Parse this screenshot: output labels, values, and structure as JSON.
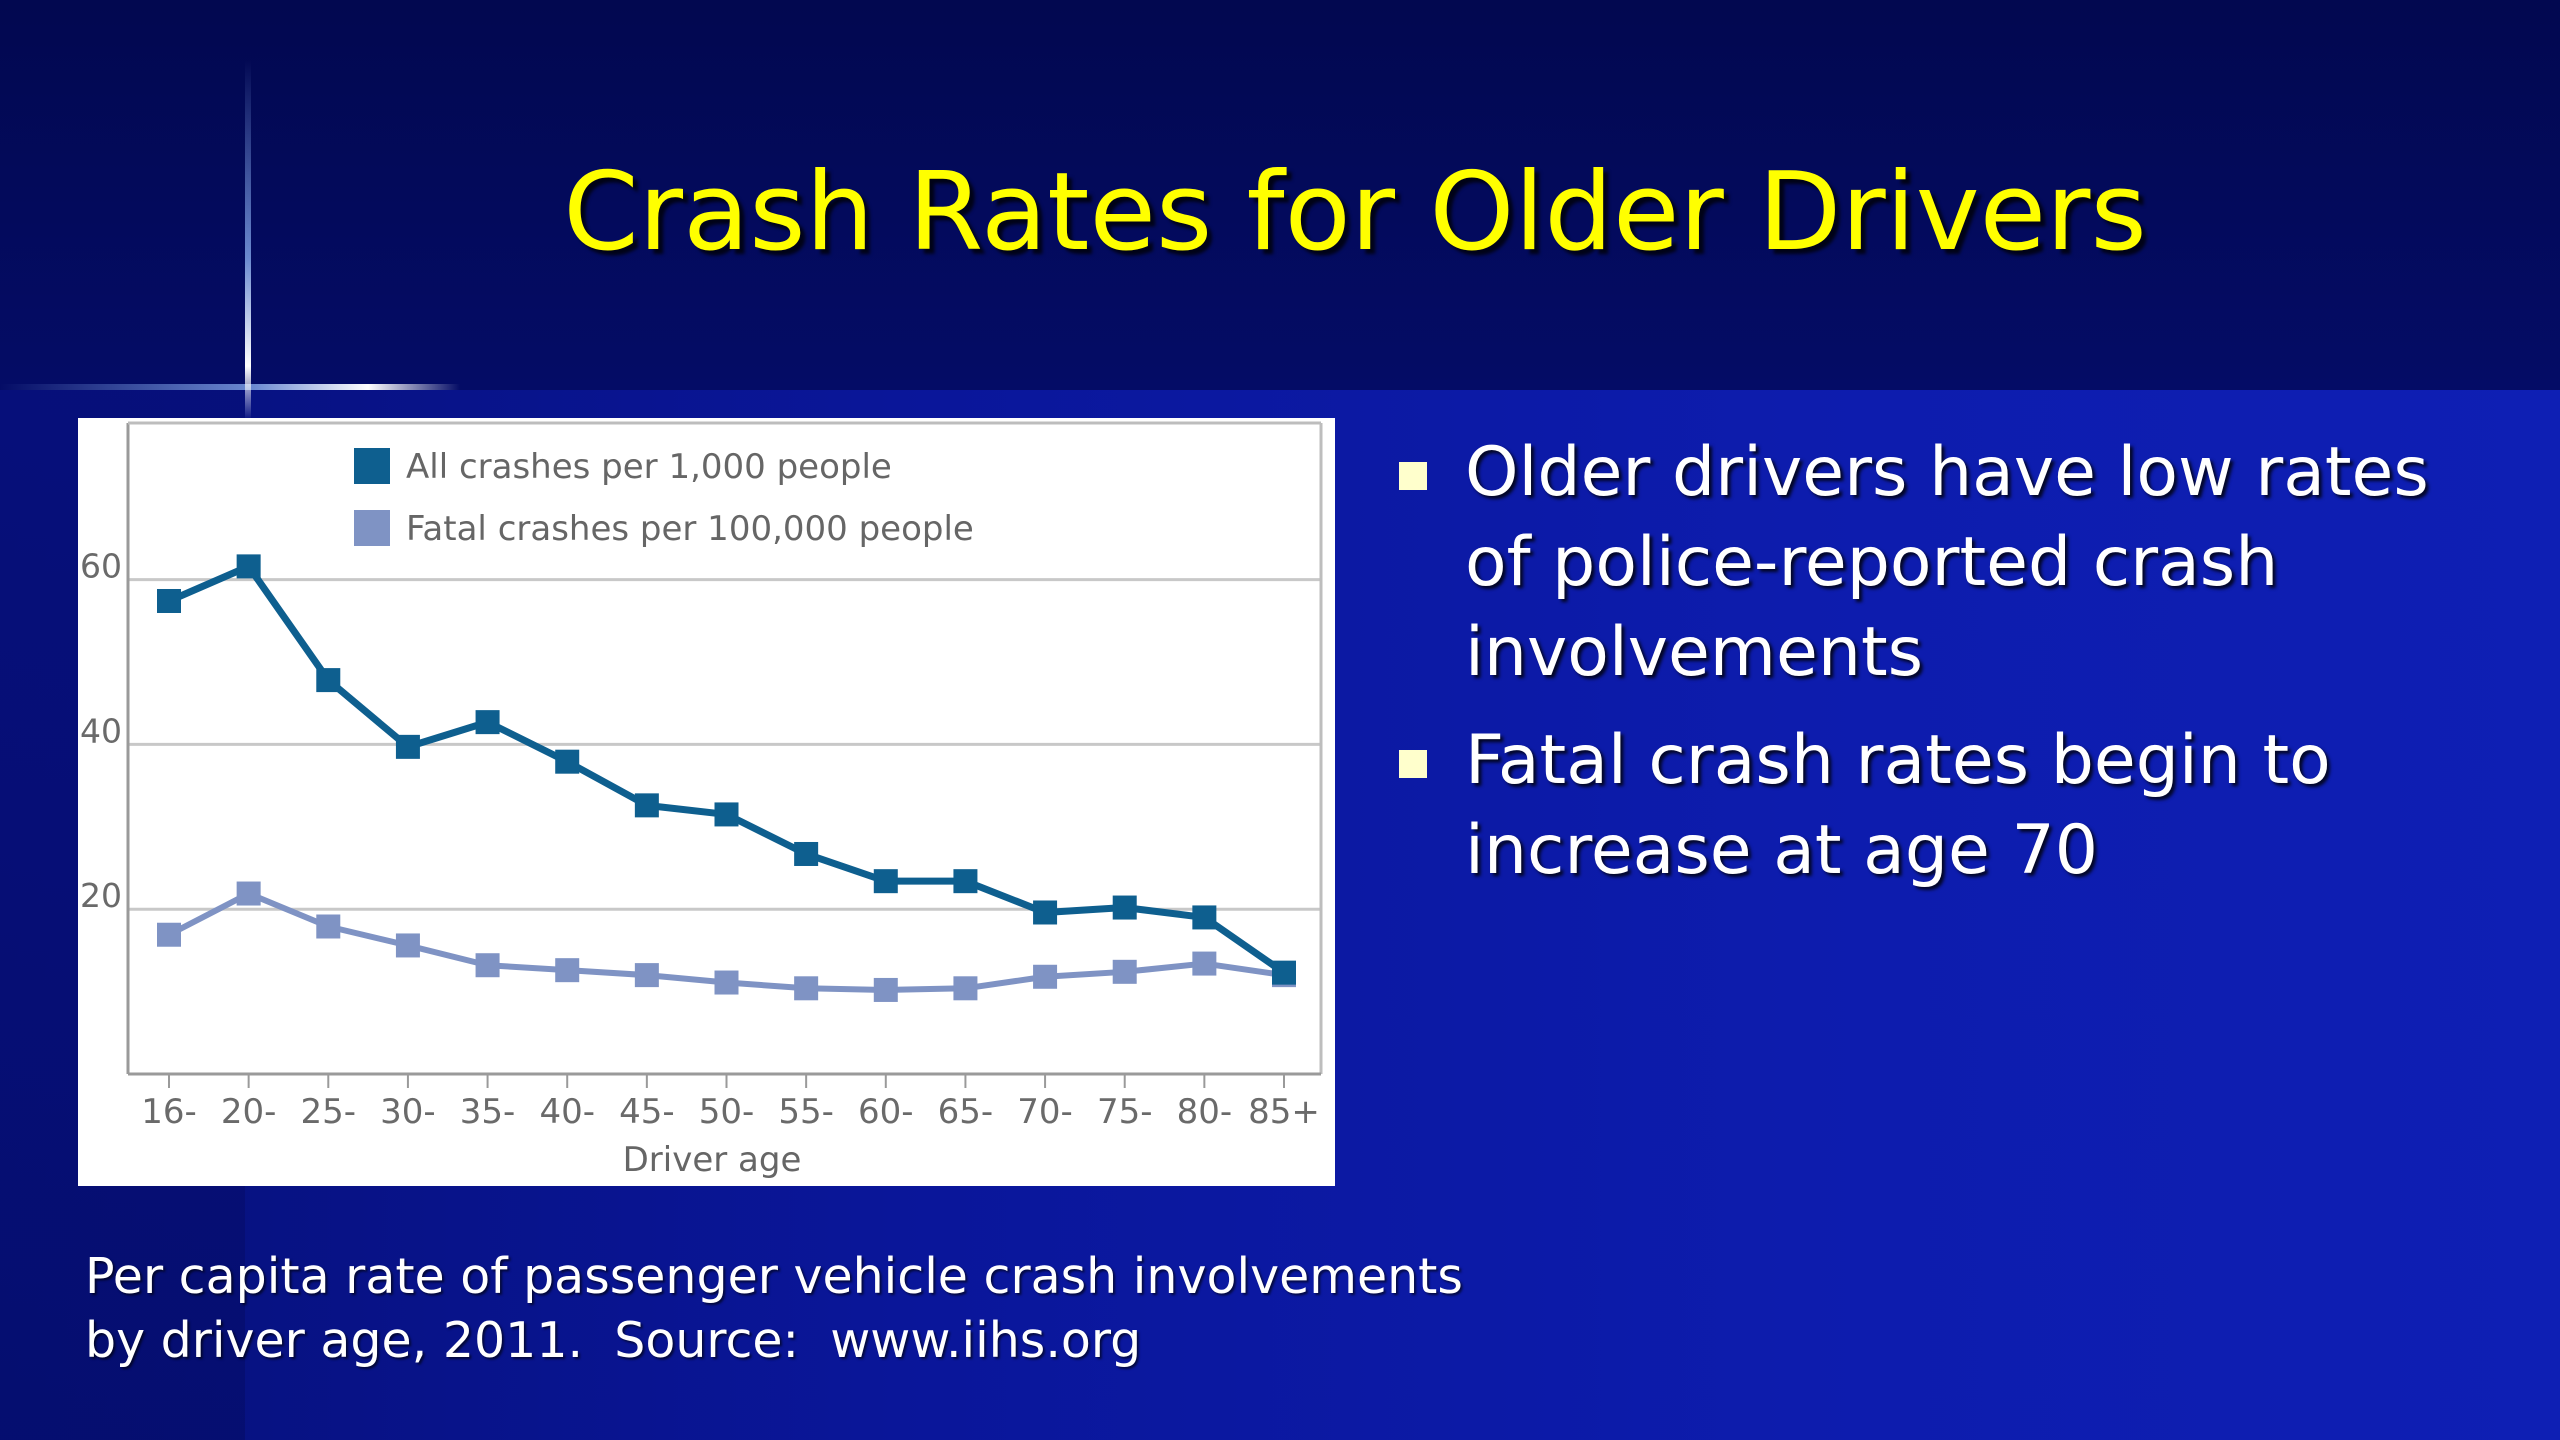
{
  "slide": {
    "title": "Crash Rates for Older Drivers",
    "bullets": [
      "Older drivers have low rates of police-reported crash involvements",
      "Fatal crash rates begin to increase at age 70"
    ],
    "caption_lines": [
      "Per capita rate of passenger vehicle crash involvements",
      "by driver age, 2011.  Source:  www.iihs.org"
    ]
  },
  "chart_data": {
    "type": "line",
    "categories": [
      "16-",
      "20-",
      "25-",
      "30-",
      "35-",
      "40-",
      "45-",
      "50-",
      "55-",
      "60-",
      "65-",
      "70-",
      "75-",
      "80-",
      "85+"
    ],
    "series": [
      {
        "name": "All crashes per 1,000 people",
        "color": "#0e5f8f",
        "values": [
          57.4,
          61.6,
          47.8,
          39.7,
          42.7,
          37.9,
          32.6,
          31.5,
          26.7,
          23.4,
          23.4,
          19.6,
          20.2,
          19.0,
          12.3
        ]
      },
      {
        "name": "Fatal crashes per 100,000 people",
        "color": "#7f93c4",
        "values": [
          16.9,
          21.9,
          17.9,
          15.6,
          13.2,
          12.6,
          12.0,
          11.1,
          10.4,
          10.2,
          10.4,
          11.8,
          12.4,
          13.4,
          12.0
        ]
      }
    ],
    "xlabel": "Driver age",
    "ylabel": "",
    "yticks": [
      20,
      40,
      60
    ],
    "ylim": [
      0,
      79
    ],
    "grid": true,
    "legend_position": "top-left"
  }
}
